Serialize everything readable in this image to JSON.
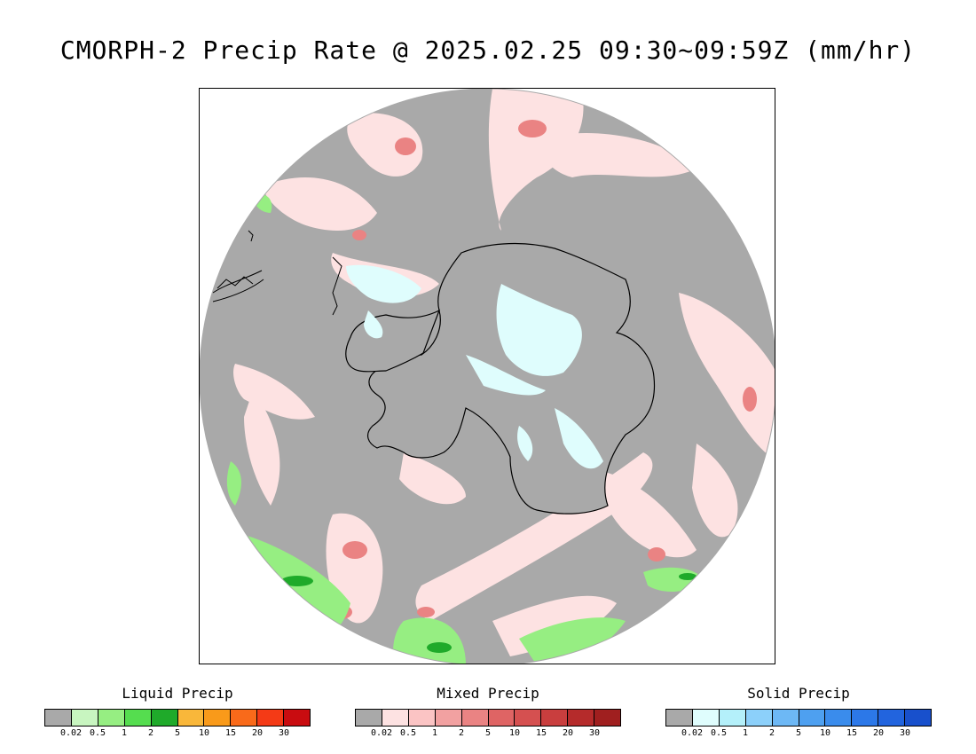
{
  "title": "CMORPH-2 Precip Rate @ 2025.02.25 09:30~09:59Z (mm/hr)",
  "map": {
    "projection": "south-polar-stereographic",
    "no_data_color": "#ffffff",
    "background_precip_color": "#a9a9a9",
    "coastline_color": "#000000"
  },
  "legends": [
    {
      "title": "Liquid Precip",
      "colors": [
        "#a9a9a9",
        "#c8f5c0",
        "#96ee82",
        "#55dd4f",
        "#1faa2a",
        "#f9b73a",
        "#f99a1a",
        "#f96a1a",
        "#f43a16",
        "#c90c10"
      ],
      "ticks": [
        "0.02",
        "0.5",
        "1",
        "2",
        "5",
        "10",
        "15",
        "20",
        "30"
      ]
    },
    {
      "title": "Mixed Precip",
      "colors": [
        "#a9a9a9",
        "#fde2e2",
        "#fbc4c4",
        "#f2a1a1",
        "#ea8383",
        "#df6464",
        "#d55050",
        "#c93e3e",
        "#b52b2b",
        "#a01f1f"
      ],
      "ticks": [
        "0.02",
        "0.5",
        "1",
        "2",
        "5",
        "10",
        "15",
        "20",
        "30"
      ]
    },
    {
      "title": "Solid Precip",
      "colors": [
        "#a9a9a9",
        "#dffdfd",
        "#b4f0fa",
        "#8cd0fa",
        "#6db8f5",
        "#4ea0f0",
        "#3a8cec",
        "#2c78e8",
        "#2264de",
        "#1850cc"
      ],
      "ticks": [
        "0.02",
        "0.5",
        "1",
        "2",
        "5",
        "10",
        "15",
        "20",
        "30"
      ]
    }
  ]
}
